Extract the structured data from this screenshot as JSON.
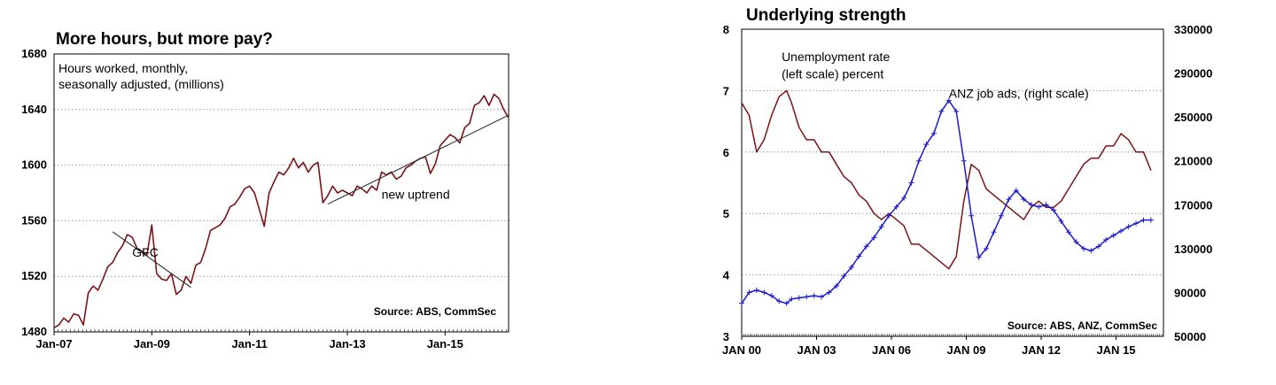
{
  "chart_data": [
    {
      "type": "line",
      "title": "More hours, but more pay?",
      "annotation_lines": [
        "Hours worked, monthly,",
        "seasonally adjusted, (millions)"
      ],
      "source": "Source: ABS, CommSec",
      "ylim": [
        1480,
        1680
      ],
      "yticks": [
        1480,
        1520,
        1560,
        1600,
        1640,
        1680
      ],
      "xlim": [
        2007.0,
        2016.3
      ],
      "xticks": [
        {
          "x": 2007.0,
          "label": "Jan-07"
        },
        {
          "x": 2009.0,
          "label": "Jan-09"
        },
        {
          "x": 2011.0,
          "label": "Jan-11"
        },
        {
          "x": 2013.0,
          "label": "Jan-13"
        },
        {
          "x": 2015.0,
          "label": "Jan-15"
        }
      ],
      "series": [
        {
          "color": "#7b1416",
          "x": [
            2007.0,
            2007.1,
            2007.2,
            2007.3,
            2007.4,
            2007.5,
            2007.6,
            2007.7,
            2007.8,
            2007.9,
            2008.0,
            2008.1,
            2008.2,
            2008.3,
            2008.4,
            2008.5,
            2008.6,
            2008.7,
            2008.8,
            2008.9,
            2009.0,
            2009.1,
            2009.2,
            2009.3,
            2009.4,
            2009.5,
            2009.6,
            2009.7,
            2009.8,
            2009.9,
            2010.0,
            2010.1,
            2010.2,
            2010.3,
            2010.4,
            2010.5,
            2010.6,
            2010.7,
            2010.8,
            2010.9,
            2011.0,
            2011.1,
            2011.2,
            2011.3,
            2011.4,
            2011.5,
            2011.6,
            2011.7,
            2011.8,
            2011.9,
            2012.0,
            2012.1,
            2012.2,
            2012.3,
            2012.4,
            2012.5,
            2012.6,
            2012.7,
            2012.8,
            2012.9,
            2013.0,
            2013.1,
            2013.2,
            2013.3,
            2013.4,
            2013.5,
            2013.6,
            2013.7,
            2013.8,
            2013.9,
            2014.0,
            2014.1,
            2014.2,
            2014.3,
            2014.4,
            2014.5,
            2014.6,
            2014.7,
            2014.8,
            2014.9,
            2015.0,
            2015.1,
            2015.2,
            2015.3,
            2015.4,
            2015.5,
            2015.6,
            2015.7,
            2015.8,
            2015.9,
            2016.0,
            2016.1,
            2016.2,
            2016.3
          ],
          "values": [
            1483,
            1485,
            1490,
            1487,
            1493,
            1492,
            1485,
            1508,
            1513,
            1510,
            1518,
            1527,
            1530,
            1537,
            1542,
            1550,
            1548,
            1540,
            1538,
            1535,
            1557,
            1522,
            1518,
            1517,
            1522,
            1507,
            1510,
            1520,
            1515,
            1528,
            1530,
            1540,
            1553,
            1555,
            1557,
            1562,
            1570,
            1572,
            1577,
            1583,
            1585,
            1580,
            1568,
            1556,
            1580,
            1588,
            1595,
            1593,
            1598,
            1605,
            1598,
            1602,
            1595,
            1600,
            1602,
            1573,
            1578,
            1585,
            1580,
            1582,
            1580,
            1578,
            1585,
            1583,
            1580,
            1585,
            1582,
            1595,
            1593,
            1595,
            1590,
            1592,
            1598,
            1600,
            1603,
            1605,
            1606,
            1594,
            1601,
            1614,
            1618,
            1622,
            1620,
            1616,
            1627,
            1630,
            1643,
            1645,
            1650,
            1643,
            1651,
            1648,
            1640,
            1634
          ]
        }
      ],
      "trendlines": [
        {
          "x": [
            2008.2,
            2009.8
          ],
          "y": [
            1552,
            1512
          ]
        },
        {
          "x": [
            2012.6,
            2016.3
          ],
          "y": [
            1572,
            1636
          ]
        }
      ],
      "labels": [
        {
          "text": "GFC",
          "x": 2008.6,
          "y": 1534
        },
        {
          "text": "new uptrend",
          "x": 2013.7,
          "y": 1576
        }
      ]
    },
    {
      "type": "line",
      "title": "Underlying strength",
      "source": "Source: ABS, ANZ, CommSec",
      "ylim_left": [
        3,
        8
      ],
      "yticks_left": [
        3,
        4,
        5,
        6,
        7,
        8
      ],
      "ylim_right": [
        50000,
        330000
      ],
      "yticks_right": [
        50000,
        90000,
        130000,
        170000,
        210000,
        250000,
        290000,
        330000
      ],
      "xlim": [
        2000.0,
        2016.9
      ],
      "xticks": [
        {
          "x": 2000,
          "label": "JAN 00"
        },
        {
          "x": 2003,
          "label": "JAN 03"
        },
        {
          "x": 2006,
          "label": "JAN 06"
        },
        {
          "x": 2009,
          "label": "JAN 09"
        },
        {
          "x": 2012,
          "label": "JAN 12"
        },
        {
          "x": 2015,
          "label": "JAN 15"
        }
      ],
      "series": [
        {
          "axis": "left",
          "color": "#7b1416",
          "marker": "none",
          "x": [
            2000.0,
            2000.3,
            2000.6,
            2000.9,
            2001.2,
            2001.5,
            2001.8,
            2002.0,
            2002.3,
            2002.6,
            2002.9,
            2003.2,
            2003.5,
            2003.8,
            2004.1,
            2004.4,
            2004.7,
            2005.0,
            2005.3,
            2005.6,
            2005.9,
            2006.2,
            2006.5,
            2006.8,
            2007.1,
            2007.4,
            2007.7,
            2008.0,
            2008.3,
            2008.6,
            2008.9,
            2009.2,
            2009.5,
            2009.8,
            2010.1,
            2010.4,
            2010.7,
            2011.0,
            2011.3,
            2011.6,
            2011.9,
            2012.2,
            2012.5,
            2012.8,
            2013.1,
            2013.4,
            2013.7,
            2014.0,
            2014.3,
            2014.6,
            2014.9,
            2015.2,
            2015.5,
            2015.8,
            2016.1,
            2016.4
          ],
          "values": [
            6.8,
            6.6,
            6.0,
            6.2,
            6.6,
            6.9,
            7.0,
            6.8,
            6.4,
            6.2,
            6.2,
            6.0,
            6.0,
            5.8,
            5.6,
            5.5,
            5.3,
            5.2,
            5.0,
            4.9,
            5.0,
            4.9,
            4.8,
            4.5,
            4.5,
            4.4,
            4.3,
            4.2,
            4.1,
            4.3,
            5.2,
            5.8,
            5.7,
            5.4,
            5.3,
            5.2,
            5.1,
            5.0,
            4.9,
            5.1,
            5.2,
            5.1,
            5.1,
            5.2,
            5.4,
            5.6,
            5.8,
            5.9,
            5.9,
            6.1,
            6.1,
            6.3,
            6.2,
            6.0,
            6.0,
            5.7
          ]
        },
        {
          "axis": "right",
          "color": "#1a1ad0",
          "marker": "plus",
          "x": [
            2000.0,
            2000.3,
            2000.6,
            2000.9,
            2001.2,
            2001.5,
            2001.8,
            2002.0,
            2002.3,
            2002.6,
            2002.9,
            2003.2,
            2003.5,
            2003.8,
            2004.1,
            2004.4,
            2004.7,
            2005.0,
            2005.3,
            2005.6,
            2005.9,
            2006.2,
            2006.5,
            2006.8,
            2007.1,
            2007.4,
            2007.7,
            2008.0,
            2008.3,
            2008.6,
            2008.9,
            2009.2,
            2009.5,
            2009.8,
            2010.1,
            2010.4,
            2010.7,
            2011.0,
            2011.3,
            2011.6,
            2011.9,
            2012.2,
            2012.5,
            2012.8,
            2013.1,
            2013.4,
            2013.7,
            2014.0,
            2014.3,
            2014.6,
            2014.9,
            2015.2,
            2015.5,
            2015.8,
            2016.1,
            2016.4
          ],
          "values": [
            80000,
            90000,
            92000,
            90000,
            87000,
            82000,
            80000,
            84000,
            85000,
            86000,
            87000,
            86000,
            90000,
            96000,
            105000,
            113000,
            123000,
            132000,
            140000,
            150000,
            160000,
            168000,
            176000,
            190000,
            210000,
            225000,
            235000,
            255000,
            265000,
            255000,
            210000,
            160000,
            122000,
            130000,
            145000,
            160000,
            175000,
            183000,
            175000,
            170000,
            168000,
            170000,
            165000,
            155000,
            145000,
            136000,
            130000,
            128000,
            132000,
            138000,
            142000,
            146000,
            150000,
            153000,
            156000,
            156000
          ]
        }
      ],
      "labels": [
        {
          "text": "Unemployment rate",
          "x": 2001.6,
          "y": 7.48
        },
        {
          "text": "(left scale) percent",
          "x": 2001.6,
          "y": 7.2
        },
        {
          "text": "ANZ job ads, (right scale)",
          "x": 2008.3,
          "y": 6.88
        }
      ]
    }
  ]
}
